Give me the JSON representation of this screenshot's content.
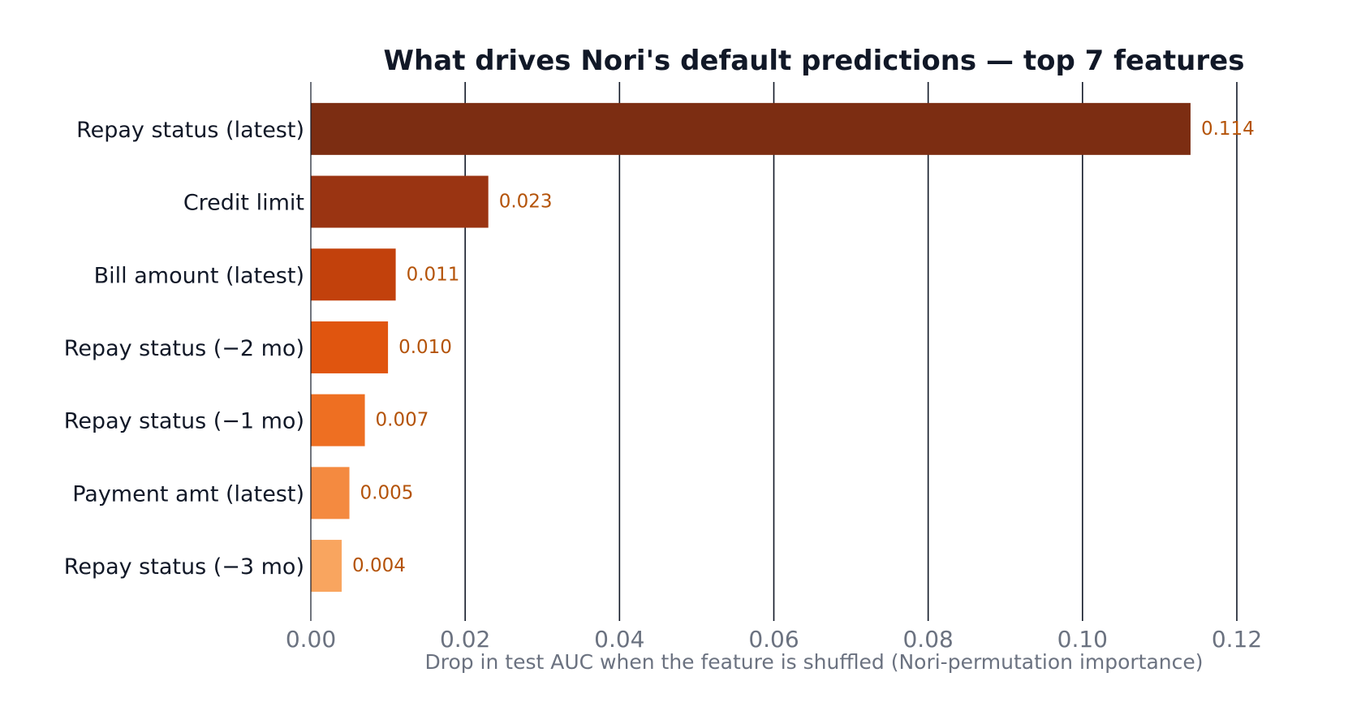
{
  "chart_data": {
    "type": "bar",
    "orientation": "horizontal",
    "title": "What drives Nori's default predictions — top 7 features",
    "xlabel": "Drop in test AUC when the feature is shuffled  (Nori-permutation importance)",
    "ylabel": "",
    "categories": [
      "Repay status (latest)",
      "Credit limit",
      "Bill amount (latest)",
      "Repay status (−2 mo)",
      "Repay status (−1 mo)",
      "Payment amt (latest)",
      "Repay status (−3 mo)"
    ],
    "values": [
      0.114,
      0.023,
      0.011,
      0.01,
      0.007,
      0.005,
      0.004
    ],
    "value_labels": [
      "0.114",
      "0.023",
      "0.011",
      "0.010",
      "0.007",
      "0.005",
      "0.004"
    ],
    "xlim": [
      0,
      0.12
    ],
    "xticks": [
      0.0,
      0.02,
      0.04,
      0.06,
      0.08,
      0.1,
      0.12
    ],
    "xtick_labels": [
      "0.00",
      "0.02",
      "0.04",
      "0.06",
      "0.08",
      "0.10",
      "0.12"
    ],
    "grid": "vertical",
    "legend": "none",
    "colors": [
      "#7c2d12",
      "#9a3412",
      "#c2410c",
      "#e0550f",
      "#ee6f22",
      "#f48a40",
      "#f9a55f"
    ]
  }
}
